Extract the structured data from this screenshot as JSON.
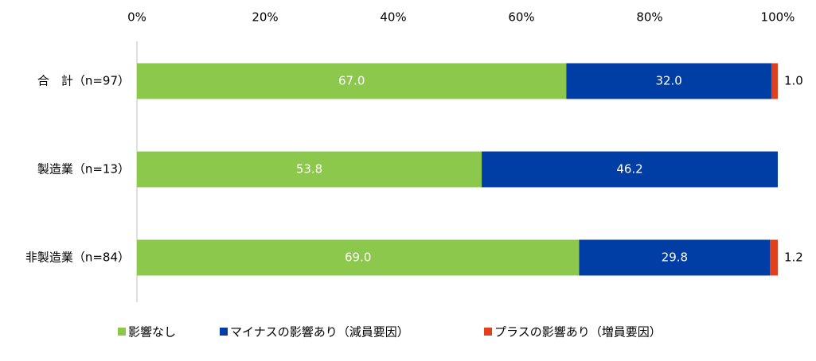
{
  "chart_data": {
    "type": "stacked-barh",
    "categories": [
      "合　計（n=97）",
      "製造業（n=13）",
      "非製造業（n=84）"
    ],
    "series": [
      {
        "name": "影響なし",
        "color": "#8cc84b",
        "values": [
          67.0,
          53.8,
          69.0
        ],
        "value_labels": [
          "67.0",
          "53.8",
          "69.0"
        ]
      },
      {
        "name": "マイナスの影響あり（減員要因）",
        "color": "#003da5",
        "values": [
          32.0,
          46.2,
          29.8
        ],
        "value_labels": [
          "32.0",
          "46.2",
          "29.8"
        ]
      },
      {
        "name": "プラスの影響あり（増員要因）",
        "color": "#e0401c",
        "values": [
          1.0,
          null,
          1.2
        ],
        "value_labels": [
          "1.0",
          null,
          "1.2"
        ]
      }
    ],
    "xlim": [
      0,
      100
    ],
    "xticks": [
      {
        "value": 0,
        "label": "0%"
      },
      {
        "value": 20,
        "label": "20%"
      },
      {
        "value": 40,
        "label": "40%"
      },
      {
        "value": 60,
        "label": "60%"
      },
      {
        "value": 80,
        "label": "80%"
      },
      {
        "value": 100,
        "label": "100%"
      }
    ],
    "legend": "bottom"
  }
}
